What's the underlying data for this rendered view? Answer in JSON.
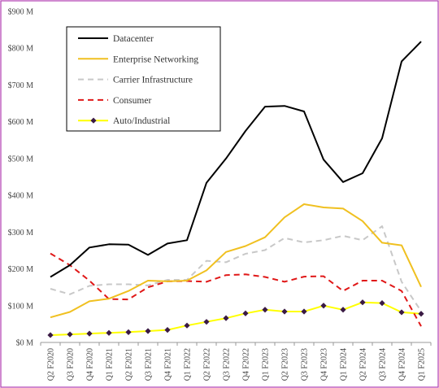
{
  "chart_data": {
    "type": "line",
    "title": "",
    "xlabel": "",
    "ylabel": "",
    "ylim": [
      0,
      900
    ],
    "y_ticks": [
      {
        "value": 0,
        "label": "$0 M"
      },
      {
        "value": 100,
        "label": "$100 M"
      },
      {
        "value": 200,
        "label": "$200 M"
      },
      {
        "value": 300,
        "label": "$300 M"
      },
      {
        "value": 400,
        "label": "$400 M"
      },
      {
        "value": 500,
        "label": "$500 M"
      },
      {
        "value": 600,
        "label": "$600 M"
      },
      {
        "value": 700,
        "label": "$700 M"
      },
      {
        "value": 800,
        "label": "$800 M"
      },
      {
        "value": 900,
        "label": "$900 M"
      }
    ],
    "categories": [
      "Q2 F2020",
      "Q3 F2020",
      "Q4 F2020",
      "Q1 F2021",
      "Q2 F2021",
      "Q3 F2021",
      "Q4 F2021",
      "Q1 F2022",
      "Q2 F2022",
      "Q3 F2022",
      "Q4 F2022",
      "Q1 F2023",
      "Q2 F2023",
      "Q3 F2023",
      "Q4 F2023",
      "Q1 F2024",
      "Q2 F2024",
      "Q3 F2024",
      "Q4 F2024",
      "Q1 F2025"
    ],
    "grid": false,
    "legend_position": "top-left",
    "frame_color": "#b03cb0",
    "series": [
      {
        "name": "Datacenter",
        "color": "#000000",
        "style": "solid",
        "values": [
          178,
          210,
          258,
          267,
          266,
          238,
          269,
          278,
          434,
          500,
          575,
          641,
          643,
          628,
          497,
          436,
          460,
          555,
          764,
          818
        ]
      },
      {
        "name": "Enterprise Networking",
        "color": "#f0c020",
        "style": "solid",
        "values": [
          68,
          83,
          112,
          119,
          140,
          168,
          166,
          168,
          196,
          246,
          262,
          286,
          340,
          376,
          367,
          364,
          330,
          271,
          264,
          151
        ]
      },
      {
        "name": "Carrier Infrastructure",
        "color": "#c8c8c8",
        "style": "dashed",
        "values": [
          146,
          131,
          154,
          158,
          158,
          155,
          170,
          170,
          222,
          218,
          241,
          251,
          284,
          272,
          278,
          290,
          278,
          316,
          165,
          85
        ]
      },
      {
        "name": "Consumer",
        "color": "#e01818",
        "style": "dashed",
        "values": [
          242,
          210,
          168,
          118,
          117,
          150,
          166,
          167,
          165,
          183,
          185,
          178,
          165,
          179,
          180,
          140,
          168,
          168,
          140,
          44
        ]
      },
      {
        "name": "Auto/Industrial",
        "color": "#ffff00",
        "marker_color": "#3a1a44",
        "style": "solid-markers",
        "values": [
          20,
          22,
          24,
          26,
          28,
          31,
          34,
          46,
          56,
          66,
          79,
          89,
          84,
          84,
          100,
          89,
          109,
          107,
          82,
          78
        ]
      }
    ]
  }
}
